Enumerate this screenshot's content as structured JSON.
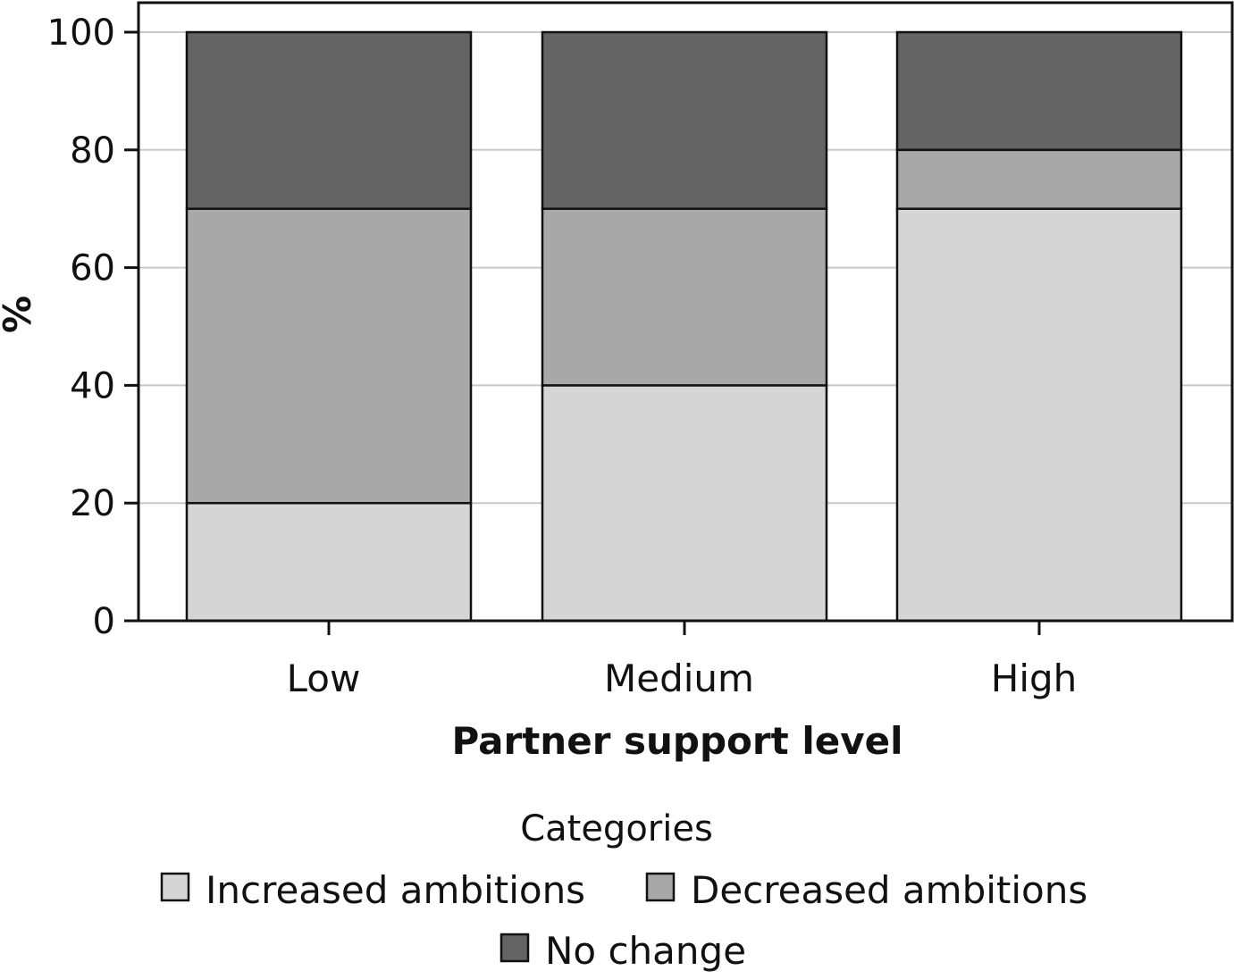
{
  "chart_data": {
    "type": "bar",
    "stacked": true,
    "categories": [
      "Low",
      "Medium",
      "High"
    ],
    "series": [
      {
        "name": "Increased ambitions",
        "values": [
          20,
          40,
          70
        ],
        "color": "#d5d5d5"
      },
      {
        "name": "Decreased ambitions",
        "values": [
          50,
          30,
          10
        ],
        "color": "#a8a8a8"
      },
      {
        "name": "No change",
        "values": [
          30,
          30,
          20
        ],
        "color": "#646464"
      }
    ],
    "title": "",
    "xlabel": "Partner support level",
    "ylabel": "%",
    "ylim": [
      0,
      100
    ],
    "yticks": [
      0,
      20,
      40,
      60,
      80,
      100
    ],
    "grid": true,
    "legend": {
      "title": "Categories",
      "position": "bottom"
    }
  }
}
